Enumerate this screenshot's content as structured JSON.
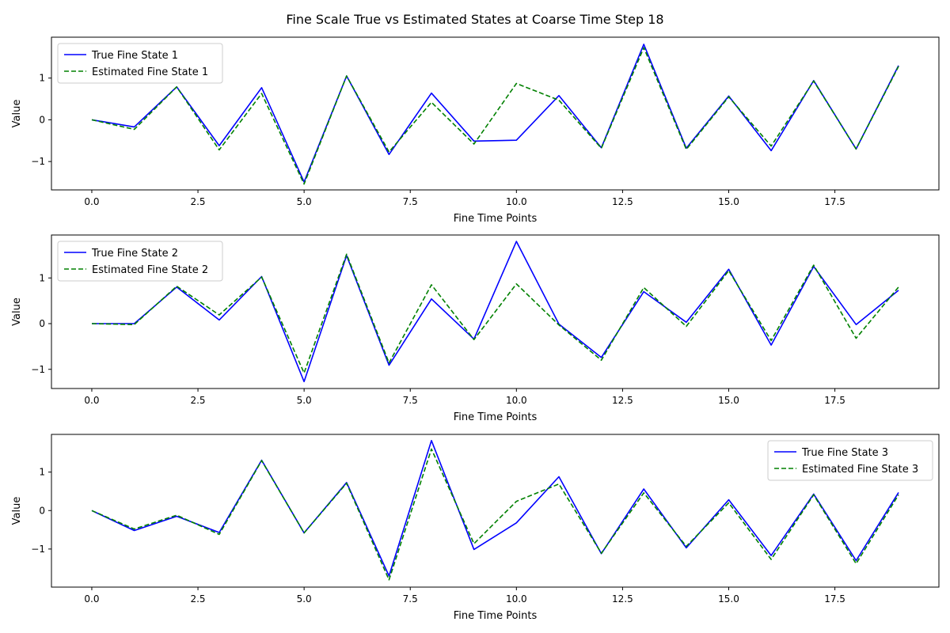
{
  "figure": {
    "title": "Fine Scale True vs Estimated States at Coarse Time Step 18"
  },
  "colors": {
    "true_series": "#0000ff",
    "estimated_series": "#008000",
    "axes": "#000000",
    "legend_border": "#cccccc"
  },
  "chart_data": [
    {
      "type": "line",
      "xlabel": "Fine Time Points",
      "ylabel": "Value",
      "xlim": [
        -0.95,
        19.95
      ],
      "ylim": [
        -1.68,
        1.98
      ],
      "xticks": [
        0,
        2.5,
        5,
        7.5,
        10,
        12.5,
        15,
        17.5
      ],
      "xtick_labels": [
        "0.0",
        "2.5",
        "5.0",
        "7.5",
        "10.0",
        "12.5",
        "15.0",
        "17.5"
      ],
      "yticks": [
        -1,
        0,
        1
      ],
      "ytick_labels": [
        "−1",
        "0",
        "1"
      ],
      "grid": false,
      "legend_position": "upper-left",
      "x": [
        0,
        1,
        2,
        3,
        4,
        5,
        6,
        7,
        8,
        9,
        10,
        11,
        12,
        13,
        14,
        15,
        16,
        17,
        18,
        19
      ],
      "series": [
        {
          "name": "True Fine State 1",
          "style": "solid",
          "values": [
            0,
            -0.17,
            0.79,
            -0.62,
            0.77,
            -1.49,
            1.05,
            -0.83,
            0.64,
            -0.51,
            -0.49,
            0.58,
            -0.67,
            1.81,
            -0.68,
            0.57,
            -0.74,
            0.94,
            -0.7,
            1.3
          ]
        },
        {
          "name": "Estimated Fine State 1",
          "style": "dashed",
          "values": [
            0,
            -0.23,
            0.79,
            -0.72,
            0.63,
            -1.54,
            1.05,
            -0.77,
            0.42,
            -0.58,
            0.87,
            0.47,
            -0.68,
            1.73,
            -0.71,
            0.55,
            -0.63,
            0.93,
            -0.7,
            1.28
          ]
        }
      ]
    },
    {
      "type": "line",
      "xlabel": "Fine Time Points",
      "ylabel": "Value",
      "xlim": [
        -0.95,
        19.95
      ],
      "ylim": [
        -1.42,
        1.94
      ],
      "xticks": [
        0,
        2.5,
        5,
        7.5,
        10,
        12.5,
        15,
        17.5
      ],
      "xtick_labels": [
        "0.0",
        "2.5",
        "5.0",
        "7.5",
        "10.0",
        "12.5",
        "15.0",
        "17.5"
      ],
      "yticks": [
        -1,
        0,
        1
      ],
      "ytick_labels": [
        "−1",
        "0",
        "1"
      ],
      "grid": false,
      "legend_position": "upper-left",
      "x": [
        0,
        1,
        2,
        3,
        4,
        5,
        6,
        7,
        8,
        9,
        10,
        11,
        12,
        13,
        14,
        15,
        16,
        17,
        18,
        19
      ],
      "series": [
        {
          "name": "True Fine State 2",
          "style": "solid",
          "values": [
            0,
            0,
            0.8,
            0.08,
            1.03,
            -1.27,
            1.49,
            -0.91,
            0.54,
            -0.34,
            1.8,
            -0.01,
            -0.74,
            0.7,
            0.03,
            1.19,
            -0.47,
            1.25,
            -0.02,
            0.73
          ]
        },
        {
          "name": "Estimated Fine State 2",
          "style": "dashed",
          "values": [
            0,
            -0.02,
            0.82,
            0.19,
            1.02,
            -1.08,
            1.52,
            -0.86,
            0.85,
            -0.35,
            0.87,
            -0.03,
            -0.8,
            0.79,
            -0.06,
            1.16,
            -0.37,
            1.28,
            -0.32,
            0.8
          ]
        }
      ]
    },
    {
      "type": "line",
      "xlabel": "Fine Time Points",
      "ylabel": "Value",
      "xlim": [
        -0.95,
        19.95
      ],
      "ylim": [
        -1.99,
        1.98
      ],
      "xticks": [
        0,
        2.5,
        5,
        7.5,
        10,
        12.5,
        15,
        17.5
      ],
      "xtick_labels": [
        "0.0",
        "2.5",
        "5.0",
        "7.5",
        "10.0",
        "12.5",
        "15.0",
        "17.5"
      ],
      "yticks": [
        -1,
        0,
        1
      ],
      "ytick_labels": [
        "−1",
        "0",
        "1"
      ],
      "grid": false,
      "legend_position": "upper-right",
      "x": [
        0,
        1,
        2,
        3,
        4,
        5,
        6,
        7,
        8,
        9,
        10,
        11,
        12,
        13,
        14,
        15,
        16,
        17,
        18,
        19
      ],
      "series": [
        {
          "name": "True Fine State 3",
          "style": "solid",
          "values": [
            0,
            -0.52,
            -0.15,
            -0.57,
            1.31,
            -0.58,
            0.73,
            -1.7,
            1.82,
            -1.01,
            -0.32,
            0.88,
            -1.12,
            0.56,
            -0.97,
            0.28,
            -1.17,
            0.43,
            -1.3,
            0.47
          ]
        },
        {
          "name": "Estimated Fine State 3",
          "style": "dashed",
          "values": [
            0,
            -0.48,
            -0.12,
            -0.62,
            1.3,
            -0.58,
            0.71,
            -1.8,
            1.6,
            -0.86,
            0.24,
            0.69,
            -1.11,
            0.46,
            -0.93,
            0.2,
            -1.27,
            0.41,
            -1.38,
            0.41
          ]
        }
      ]
    }
  ]
}
